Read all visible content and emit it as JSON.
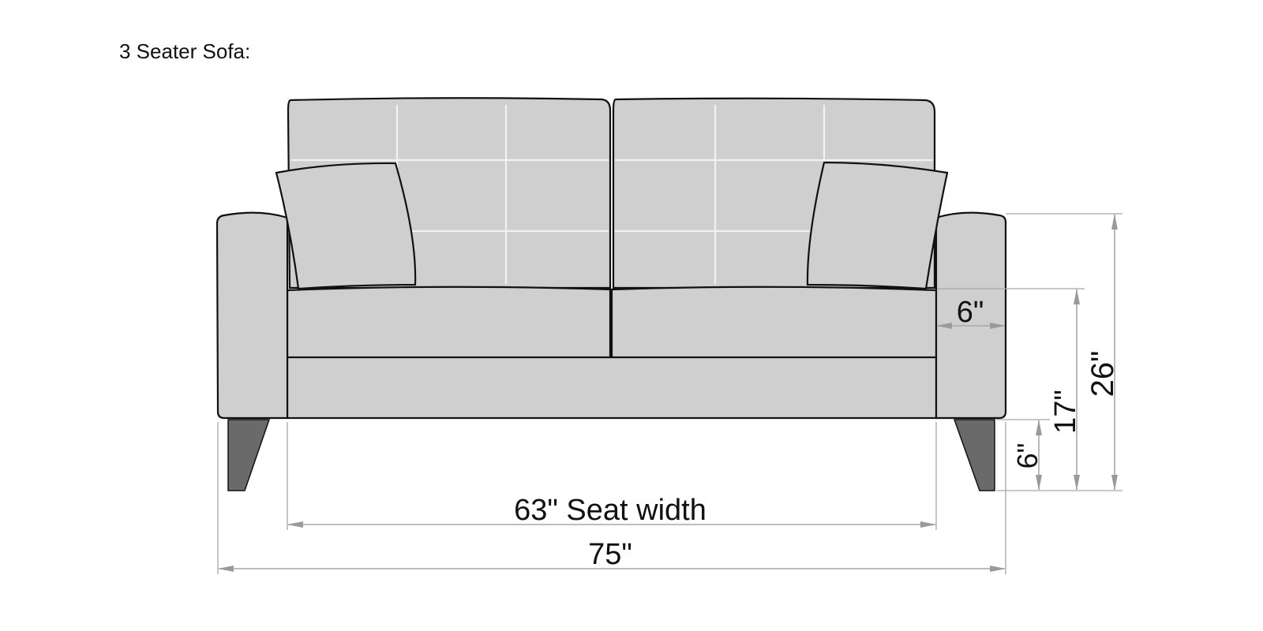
{
  "title": "3 Seater Sofa:",
  "colors": {
    "upholstery": "#cfcfcf",
    "outline": "#111111",
    "tuft_lines": "#f2f2f2",
    "legs": "#6a6a6a",
    "dimension_lines": "#a8a8a8"
  },
  "dimensions": {
    "arm_width": "6\"",
    "leg_height": "6\"",
    "seat_height": "17\"",
    "overall_height": "26\"",
    "seat_width": "63\" Seat width",
    "overall_width": "75\""
  }
}
